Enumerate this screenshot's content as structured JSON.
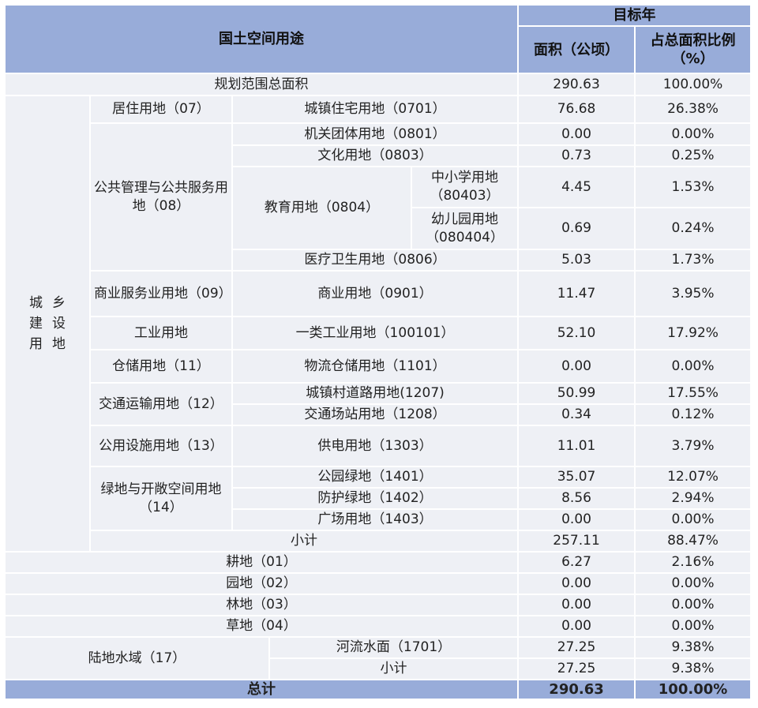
{
  "header": {
    "use": "国土空间用途",
    "target_year": "目标年",
    "area": "面积（公顷）",
    "ratio": "占总面积比例（%）"
  },
  "table": {
    "rows": [
      [
        "规划范围总面积",
        "290.63",
        "100.00%"
      ],
      [
        "城乡建设用地",
        "居住用地（07）",
        "城镇住宅用地（0701）",
        "76.68",
        "26.38%"
      ],
      [
        "公共管理与公共服务用地（08）",
        "机关团体用地（0801）",
        "0.00",
        "0.00%"
      ],
      [
        "文化用地（0803）",
        "0.73",
        "0.25%"
      ],
      [
        "教育用地（0804）",
        "中小学用地（80403）",
        "4.45",
        "1.53%"
      ],
      [
        "幼儿园用地（080404）",
        "0.69",
        "0.24%"
      ],
      [
        "医疗卫生用地（0806）",
        "5.03",
        "1.73%"
      ],
      [
        "商业服务业用地（09）",
        "商业用地（0901）",
        "11.47",
        "3.95%"
      ],
      [
        "工业用地",
        "一类工业用地（100101）",
        "52.10",
        "17.92%"
      ],
      [
        "仓储用地（11）",
        "物流仓储用地（1101）",
        "0.00",
        "0.00%"
      ],
      [
        "交通运输用地（12）",
        "城镇村道路用地(1207)",
        "50.99",
        "17.55%"
      ],
      [
        "交通场站用地（1208）",
        "0.34",
        "0.12%"
      ],
      [
        "公用设施用地（13）",
        "供电用地（1303）",
        "11.01",
        "3.79%"
      ],
      [
        "绿地与开敞空间用地（14）",
        "公园绿地（1401）",
        "35.07",
        "12.07%"
      ],
      [
        "防护绿地（1402）",
        "8.56",
        "2.94%"
      ],
      [
        "广场用地（1403）",
        "0.00",
        "0.00%"
      ],
      [
        "小计",
        "257.11",
        "88.47%"
      ],
      [
        "耕地（01）",
        "6.27",
        "2.16%"
      ],
      [
        "园地（02）",
        "0.00",
        "0.00%"
      ],
      [
        "林地（03）",
        "0.00",
        "0.00%"
      ],
      [
        "草地（04）",
        "0.00",
        "0.00%"
      ],
      [
        "陆地水域（17）",
        "河流水面（1701）",
        "27.25",
        "9.38%"
      ],
      [
        "小计",
        "27.25",
        "9.38%"
      ],
      [
        "总计",
        "290.63",
        "100.00%"
      ]
    ]
  }
}
